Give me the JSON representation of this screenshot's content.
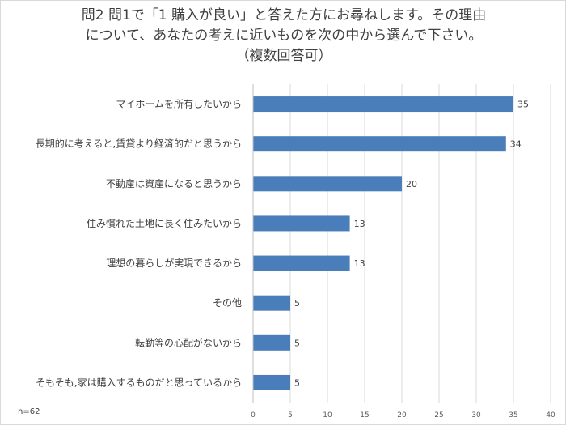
{
  "chart_data": {
    "type": "bar",
    "orientation": "horizontal",
    "title_lines": [
      "問2  問1で「1  購入が良い」と答えた方にお尋ねします。その理由",
      "について、あなたの考えに近いものを次の中から選んで下さい。",
      "（複数回答可）"
    ],
    "categories": [
      "マイホームを所有したいから",
      "長期的に考えると,賃貸より経済的だと思うから",
      "不動産は資産になると思うから",
      "住み慣れた土地に長く住みたいから",
      "理想の暮らしが実現できるから",
      "その他",
      "転勤等の心配がないから",
      "そもそも,家は購入するものだと思っているから"
    ],
    "values": [
      35,
      34,
      20,
      13,
      13,
      5,
      5,
      5
    ],
    "xlim": [
      0,
      40
    ],
    "xticks": [
      0,
      5,
      10,
      15,
      20,
      25,
      30,
      35,
      40
    ],
    "grid": true,
    "bar_color": "#4a7ebb",
    "note": "n=62"
  }
}
